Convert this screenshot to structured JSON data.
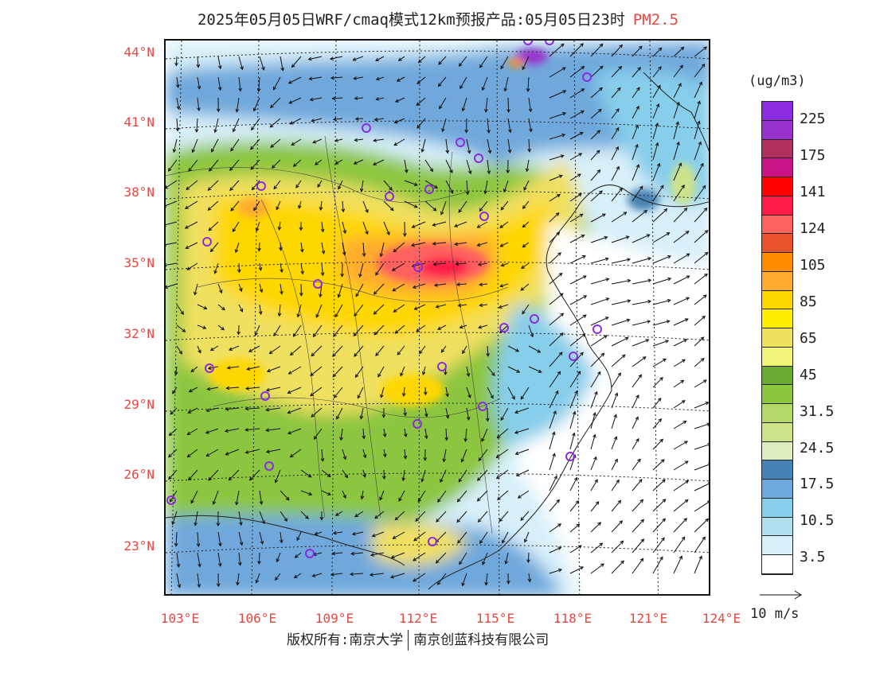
{
  "title": {
    "text": "2025年05月05日WRF/cmaq模式12km预报产品:05月05日23时",
    "species": "PM2.5"
  },
  "map": {
    "lat_labels": [
      "44°N",
      "41°N",
      "38°N",
      "35°N",
      "32°N",
      "29°N",
      "26°N",
      "23°N"
    ],
    "lon_labels": [
      "103°E",
      "106°E",
      "109°E",
      "112°E",
      "115°E",
      "118°E",
      "121°E",
      "124°E"
    ],
    "label_color": "#e8473f"
  },
  "legend": {
    "unit": "(ug/m3)",
    "colors": [
      "#8b2be2",
      "#9932cc",
      "#b03060",
      "#c71585",
      "#ff0000",
      "#ff1a4a",
      "#ff6060",
      "#e8532a",
      "#ff8c00",
      "#ffab2e",
      "#ffd700",
      "#ffee00",
      "#f0e060",
      "#f0f57a",
      "#6aaa30",
      "#8cc63f",
      "#b4d96a",
      "#cde38a",
      "#dfeec0",
      "#4682b4",
      "#6fa8dc",
      "#87ceeb",
      "#b0e0f0",
      "#d8f0fa",
      "#ffffff"
    ],
    "labels": [
      "225",
      "175",
      "141",
      "124",
      "105",
      "85",
      "65",
      "45",
      "31.5",
      "24.5",
      "17.5",
      "10.5",
      "3.5"
    ]
  },
  "wind_key": {
    "label": "10 m/s"
  },
  "footer": {
    "copyright": "版权所有:南京大学",
    "company": "南京创蓝科技有限公司"
  }
}
